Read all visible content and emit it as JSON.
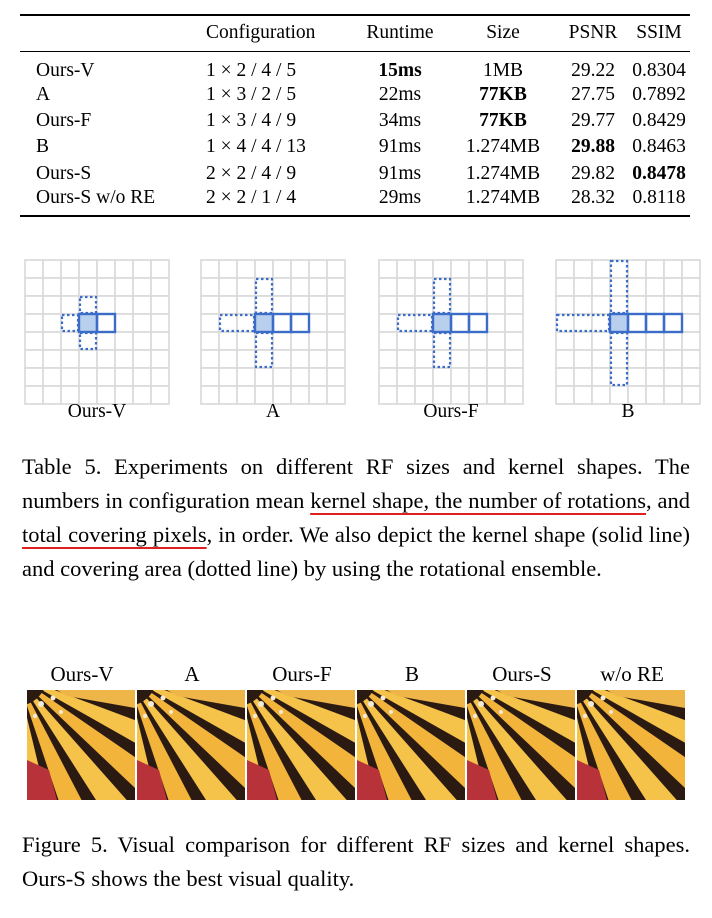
{
  "table": {
    "headers": [
      "",
      "Configuration",
      "Runtime",
      "Size",
      "PSNR",
      "SSIM"
    ],
    "rows": [
      {
        "method": "Ours-V",
        "config": "1 × 2 / 4 / 5",
        "runtime": "15ms",
        "size": "1MB",
        "psnr": "29.22",
        "ssim": "0.8304"
      },
      {
        "method": "A",
        "config": "1 × 3 / 2 / 5",
        "runtime": "22ms",
        "size": "77KB",
        "psnr": "27.75",
        "ssim": "0.7892"
      },
      {
        "method": "Ours-F",
        "config": "1 × 3 / 4 / 9",
        "runtime": "34ms",
        "size": "77KB",
        "psnr": "29.77",
        "ssim": "0.8429"
      },
      {
        "method": "B",
        "config": "1 × 4 / 4 / 13",
        "runtime": "91ms",
        "size": "1.274MB",
        "psnr": "29.88",
        "ssim": "0.8463"
      },
      {
        "method": "Ours-S",
        "config": "2 × 2 / 4 / 9",
        "runtime": "91ms",
        "size": "1.274MB",
        "psnr": "29.82",
        "ssim": "0.8478"
      },
      {
        "method": "Ours-S w/o RE",
        "config": "2 × 2 / 1 / 4",
        "runtime": "29ms",
        "size": "1.274MB",
        "psnr": "28.32",
        "ssim": "0.8118"
      }
    ],
    "bold_cells": [
      [
        0,
        "runtime"
      ],
      [
        1,
        "size"
      ],
      [
        2,
        "size"
      ],
      [
        3,
        "psnr"
      ],
      [
        4,
        "ssim"
      ]
    ]
  },
  "kernels": [
    {
      "label": "Ours-V",
      "solid_cells": 2
    },
    {
      "label": "A",
      "solid_cells": 3
    },
    {
      "label": "Ours-F",
      "solid_cells": 3
    },
    {
      "label": "B",
      "solid_cells": 4
    }
  ],
  "table_caption": {
    "lead": "Table 5.  Experiments on different RF sizes and kernel shapes. The numbers in configuration mean ",
    "u1": "kernel shape, the number of rotations",
    "mid": ", and ",
    "u2": "total covering pixels",
    "tail": ", in order. We also depict the kernel shape (solid line) and covering area (dotted line) by using the rotational ensemble."
  },
  "visual_labels": [
    "Ours-V",
    "A",
    "Ours-F",
    "B",
    "Ours-S",
    "w/o RE"
  ],
  "figure_caption": "Figure 5. Visual comparison for different RF sizes and kernel shapes. Ours-S shows the best visual quality.",
  "colors": {
    "kernel_blue": "#3a6cc8",
    "kernel_fill": "#b8d0ee",
    "grid": "#d9d9d9",
    "underline": "#e02020"
  }
}
